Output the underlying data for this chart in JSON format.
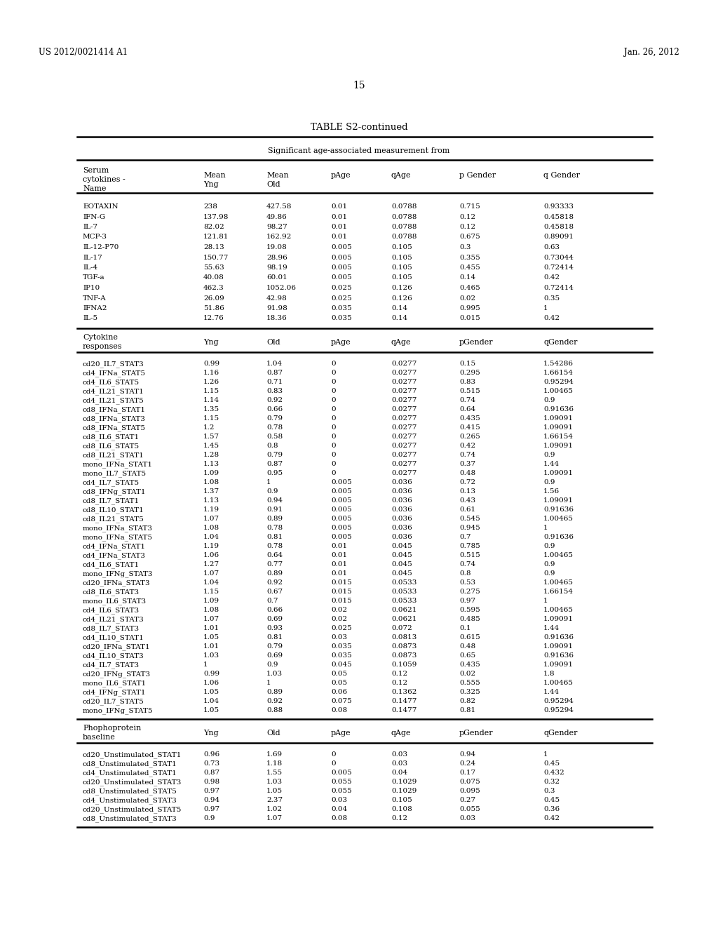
{
  "header_left": "US 2012/0021414 A1",
  "header_right": "Jan. 26, 2012",
  "page_number": "15",
  "table_title": "TABLE S2-continued",
  "table_subtitle": "Significant age-associated measurement from",
  "section1_data": [
    [
      "EOTAXIN",
      "238",
      "427.58",
      "0.01",
      "0.0788",
      "0.715",
      "0.93333"
    ],
    [
      "IFN-G",
      "137.98",
      "49.86",
      "0.01",
      "0.0788",
      "0.12",
      "0.45818"
    ],
    [
      "IL-7",
      "82.02",
      "98.27",
      "0.01",
      "0.0788",
      "0.12",
      "0.45818"
    ],
    [
      "MCP-3",
      "121.81",
      "162.92",
      "0.01",
      "0.0788",
      "0.675",
      "0.89091"
    ],
    [
      "IL-12-P70",
      "28.13",
      "19.08",
      "0.005",
      "0.105",
      "0.3",
      "0.63"
    ],
    [
      "IL-17",
      "150.77",
      "28.96",
      "0.005",
      "0.105",
      "0.355",
      "0.73044"
    ],
    [
      "IL-4",
      "55.63",
      "98.19",
      "0.005",
      "0.105",
      "0.455",
      "0.72414"
    ],
    [
      "TGF-a",
      "40.08",
      "60.01",
      "0.005",
      "0.105",
      "0.14",
      "0.42"
    ],
    [
      "IP10",
      "462.3",
      "1052.06",
      "0.025",
      "0.126",
      "0.465",
      "0.72414"
    ],
    [
      "TNF-A",
      "26.09",
      "42.98",
      "0.025",
      "0.126",
      "0.02",
      "0.35"
    ],
    [
      "IFNA2",
      "51.86",
      "91.98",
      "0.035",
      "0.14",
      "0.995",
      "1"
    ],
    [
      "IL-5",
      "12.76",
      "18.36",
      "0.035",
      "0.14",
      "0.015",
      "0.42"
    ]
  ],
  "section2_data": [
    [
      "cd20_IL7_STAT3",
      "0.99",
      "1.04",
      "0",
      "0.0277",
      "0.15",
      "1.54286"
    ],
    [
      "cd4_IFNa_STAT5",
      "1.16",
      "0.87",
      "0",
      "0.0277",
      "0.295",
      "1.66154"
    ],
    [
      "cd4_IL6_STAT5",
      "1.26",
      "0.71",
      "0",
      "0.0277",
      "0.83",
      "0.95294"
    ],
    [
      "cd4_IL21_STAT1",
      "1.15",
      "0.83",
      "0",
      "0.0277",
      "0.515",
      "1.00465"
    ],
    [
      "cd4_IL21_STAT5",
      "1.14",
      "0.92",
      "0",
      "0.0277",
      "0.74",
      "0.9"
    ],
    [
      "cd8_IFNa_STAT1",
      "1.35",
      "0.66",
      "0",
      "0.0277",
      "0.64",
      "0.91636"
    ],
    [
      "cd8_IFNa_STAT3",
      "1.15",
      "0.79",
      "0",
      "0.0277",
      "0.435",
      "1.09091"
    ],
    [
      "cd8_IFNa_STAT5",
      "1.2",
      "0.78",
      "0",
      "0.0277",
      "0.415",
      "1.09091"
    ],
    [
      "cd8_IL6_STAT1",
      "1.57",
      "0.58",
      "0",
      "0.0277",
      "0.265",
      "1.66154"
    ],
    [
      "cd8_IL6_STAT5",
      "1.45",
      "0.8",
      "0",
      "0.0277",
      "0.42",
      "1.09091"
    ],
    [
      "cd8_IL21_STAT1",
      "1.28",
      "0.79",
      "0",
      "0.0277",
      "0.74",
      "0.9"
    ],
    [
      "mono_IFNa_STAT1",
      "1.13",
      "0.87",
      "0",
      "0.0277",
      "0.37",
      "1.44"
    ],
    [
      "mono_IL7_STAT5",
      "1.09",
      "0.95",
      "0",
      "0.0277",
      "0.48",
      "1.09091"
    ],
    [
      "cd4_IL7_STAT5",
      "1.08",
      "1",
      "0.005",
      "0.036",
      "0.72",
      "0.9"
    ],
    [
      "cd8_IFNg_STAT1",
      "1.37",
      "0.9",
      "0.005",
      "0.036",
      "0.13",
      "1.56"
    ],
    [
      "cd8_IL7_STAT1",
      "1.13",
      "0.94",
      "0.005",
      "0.036",
      "0.43",
      "1.09091"
    ],
    [
      "cd8_IL10_STAT1",
      "1.19",
      "0.91",
      "0.005",
      "0.036",
      "0.61",
      "0.91636"
    ],
    [
      "cd8_IL21_STAT5",
      "1.07",
      "0.89",
      "0.005",
      "0.036",
      "0.545",
      "1.00465"
    ],
    [
      "mono_IFNa_STAT3",
      "1.08",
      "0.78",
      "0.005",
      "0.036",
      "0.945",
      "1"
    ],
    [
      "mono_IFNa_STAT5",
      "1.04",
      "0.81",
      "0.005",
      "0.036",
      "0.7",
      "0.91636"
    ],
    [
      "cd4_IFNa_STAT1",
      "1.19",
      "0.78",
      "0.01",
      "0.045",
      "0.785",
      "0.9"
    ],
    [
      "cd4_IFNa_STAT3",
      "1.06",
      "0.64",
      "0.01",
      "0.045",
      "0.515",
      "1.00465"
    ],
    [
      "cd4_IL6_STAT1",
      "1.27",
      "0.77",
      "0.01",
      "0.045",
      "0.74",
      "0.9"
    ],
    [
      "mono_IFNg_STAT3",
      "1.07",
      "0.89",
      "0.01",
      "0.045",
      "0.8",
      "0.9"
    ],
    [
      "cd20_IFNa_STAT3",
      "1.04",
      "0.92",
      "0.015",
      "0.0533",
      "0.53",
      "1.00465"
    ],
    [
      "cd8_IL6_STAT3",
      "1.15",
      "0.67",
      "0.015",
      "0.0533",
      "0.275",
      "1.66154"
    ],
    [
      "mono_IL6_STAT3",
      "1.09",
      "0.7",
      "0.015",
      "0.0533",
      "0.97",
      "1"
    ],
    [
      "cd4_IL6_STAT3",
      "1.08",
      "0.66",
      "0.02",
      "0.0621",
      "0.595",
      "1.00465"
    ],
    [
      "cd4_IL21_STAT3",
      "1.07",
      "0.69",
      "0.02",
      "0.0621",
      "0.485",
      "1.09091"
    ],
    [
      "cd8_IL7_STAT3",
      "1.01",
      "0.93",
      "0.025",
      "0.072",
      "0.1",
      "1.44"
    ],
    [
      "cd4_IL10_STAT1",
      "1.05",
      "0.81",
      "0.03",
      "0.0813",
      "0.615",
      "0.91636"
    ],
    [
      "cd20_IFNa_STAT1",
      "1.01",
      "0.79",
      "0.035",
      "0.0873",
      "0.48",
      "1.09091"
    ],
    [
      "cd4_IL10_STAT3",
      "1.03",
      "0.69",
      "0.035",
      "0.0873",
      "0.65",
      "0.91636"
    ],
    [
      "cd4_IL7_STAT3",
      "1",
      "0.9",
      "0.045",
      "0.1059",
      "0.435",
      "1.09091"
    ],
    [
      "cd20_IFNg_STAT3",
      "0.99",
      "1.03",
      "0.05",
      "0.12",
      "0.02",
      "1.8"
    ],
    [
      "mono_IL6_STAT1",
      "1.06",
      "1",
      "0.05",
      "0.12",
      "0.555",
      "1.00465"
    ],
    [
      "cd4_IFNg_STAT1",
      "1.05",
      "0.89",
      "0.06",
      "0.1362",
      "0.325",
      "1.44"
    ],
    [
      "cd20_IL7_STAT5",
      "1.04",
      "0.92",
      "0.075",
      "0.1477",
      "0.82",
      "0.95294"
    ],
    [
      "mono_IFNg_STAT5",
      "1.05",
      "0.88",
      "0.08",
      "0.1477",
      "0.81",
      "0.95294"
    ]
  ],
  "section3_data": [
    [
      "cd20_Unstimulated_STAT1",
      "0.96",
      "1.69",
      "0",
      "0.03",
      "0.94",
      "1"
    ],
    [
      "cd8_Unstimulated_STAT1",
      "0.73",
      "1.18",
      "0",
      "0.03",
      "0.24",
      "0.45"
    ],
    [
      "cd4_Unstimulated_STAT1",
      "0.87",
      "1.55",
      "0.005",
      "0.04",
      "0.17",
      "0.432"
    ],
    [
      "cd20_Unstimulated_STAT3",
      "0.98",
      "1.03",
      "0.055",
      "0.1029",
      "0.075",
      "0.32"
    ],
    [
      "cd8_Unstimulated_STAT5",
      "0.97",
      "1.05",
      "0.055",
      "0.1029",
      "0.095",
      "0.3"
    ],
    [
      "cd4_Unstimulated_STAT3",
      "0.94",
      "2.37",
      "0.03",
      "0.105",
      "0.27",
      "0.45"
    ],
    [
      "cd20_Unstimulated_STAT5",
      "0.97",
      "1.02",
      "0.04",
      "0.108",
      "0.055",
      "0.36"
    ],
    [
      "cd8_Unstimulated_STAT3",
      "0.9",
      "1.07",
      "0.08",
      "0.12",
      "0.03",
      "0.42"
    ]
  ],
  "bg_color": "#ffffff",
  "text_color": "#000000",
  "font_size_header": 8.5,
  "font_size_title": 9.5,
  "font_size_subtitle": 8.0,
  "font_size_col_header": 8.0,
  "font_size_data": 7.5
}
